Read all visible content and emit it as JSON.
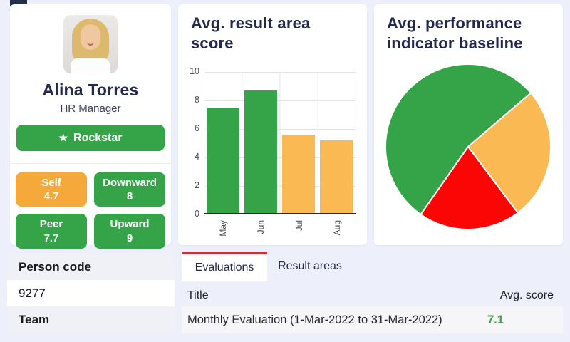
{
  "ui_colors": {
    "page_bg": "#edf0fa",
    "navy": "#232850",
    "green": "#35a449",
    "orange": "#f5a93b",
    "bar_orange": "#fbb954",
    "pie_red": "#fb0505",
    "tab_red": "#d92b2b",
    "score_green": "#43a047"
  },
  "profile": {
    "name": "Alina Torres",
    "role": "HR Manager",
    "badge": {
      "icon": "★",
      "label": "Rockstar"
    },
    "scores": [
      {
        "label": "Self",
        "value": "4.7",
        "color": "#f5a93b"
      },
      {
        "label": "Downward",
        "value": "8",
        "color": "#35a449"
      },
      {
        "label": "Peer",
        "value": "7.7",
        "color": "#35a449"
      },
      {
        "label": "Upward",
        "value": "9",
        "color": "#35a449"
      }
    ]
  },
  "chart_data": [
    {
      "type": "bar",
      "title": "Avg. result area score",
      "categories": [
        "May",
        "Jun",
        "Jul",
        "Aug"
      ],
      "values": [
        7.4,
        8.6,
        5.5,
        5.1
      ],
      "colors": [
        "#35a449",
        "#35a449",
        "#fbb954",
        "#fbb954"
      ],
      "xlabel": "",
      "ylabel": "",
      "ylim": [
        0,
        10
      ],
      "yticks": [
        0,
        2,
        4,
        6,
        8,
        10
      ],
      "grid": true,
      "legend": false
    },
    {
      "type": "pie",
      "title": "Avg. performance indicator baseline",
      "slices": [
        {
          "label": "green slice",
          "percent": 54,
          "color": "#35a449"
        },
        {
          "label": "orange slice",
          "percent": 26,
          "color": "#fbb954"
        },
        {
          "label": "red slice",
          "percent": 20,
          "color": "#fb0505"
        }
      ],
      "start_angle_deg": 215,
      "legend": false
    }
  ],
  "details": {
    "rows": [
      {
        "text": "Person code",
        "kind": "header"
      },
      {
        "text": "9277",
        "kind": "value"
      },
      {
        "text": "Team",
        "kind": "header"
      }
    ]
  },
  "tabs": [
    {
      "label": "Evaluations",
      "active": true
    },
    {
      "label": "Result areas",
      "active": false
    }
  ],
  "evaluations_table": {
    "columns": [
      "Title",
      "Avg. score"
    ],
    "rows": [
      {
        "title": "Monthly Evaluation (1-Mar-2022 to 31-Mar-2022)",
        "avg_score": "7.1"
      }
    ]
  }
}
